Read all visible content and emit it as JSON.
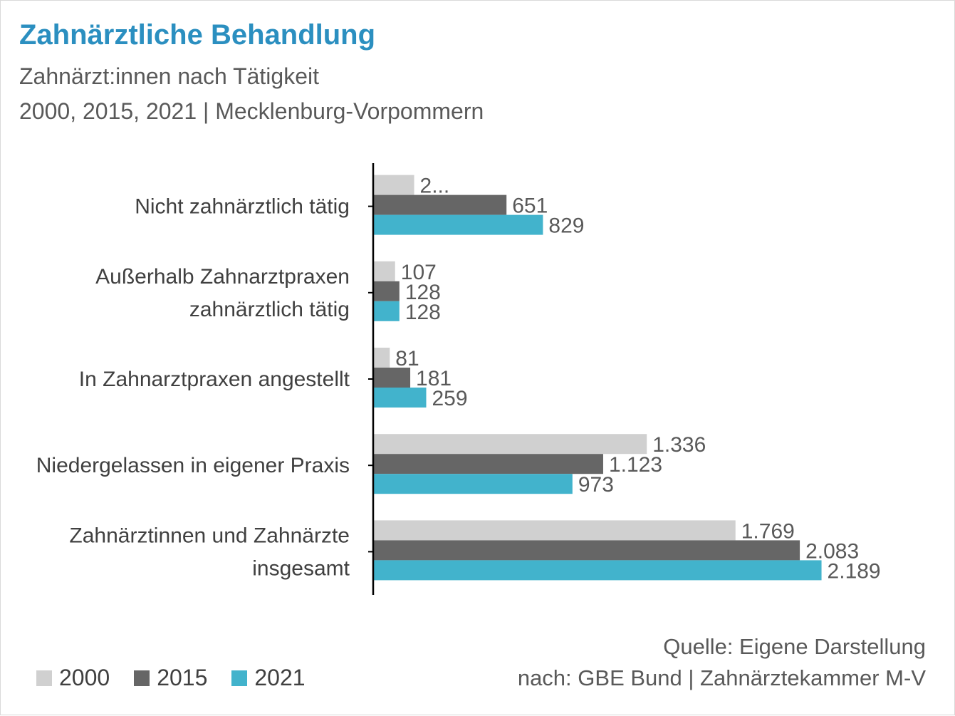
{
  "header": {
    "title": "Zahnärztliche Behandlung",
    "subtitle_line1": "Zahnärzt:innen nach Tätigkeit",
    "subtitle_line2": "2000, 2015, 2021 | Mecklenburg-Vorpommern"
  },
  "source": {
    "line1": "Quelle: Eigene Darstellung",
    "line2": "nach: GBE Bund | Zahnärztekammer M-V"
  },
  "chart_data": {
    "type": "bar",
    "orientation": "horizontal",
    "categories": [
      [
        "Nicht zahnärztlich tätig"
      ],
      [
        "Außerhalb Zahnarztpraxen",
        "zahnärztlich tätig"
      ],
      [
        "In Zahnarztpraxen angestellt"
      ],
      [
        "Niedergelassen in eigener Praxis"
      ],
      [
        "Zahnärztinnen und Zahnärzte",
        "insgesamt"
      ]
    ],
    "series": [
      {
        "name": "2000",
        "color": "#d0d0d0",
        "values": [
          200,
          107,
          81,
          1336,
          1769
        ],
        "labels": [
          "2...",
          "107",
          "81",
          "1.336",
          "1.769"
        ]
      },
      {
        "name": "2015",
        "color": "#666666",
        "values": [
          651,
          128,
          181,
          1123,
          2083
        ],
        "labels": [
          "651",
          "128",
          "181",
          "1.123",
          "2.083"
        ]
      },
      {
        "name": "2021",
        "color": "#42b3cc",
        "values": [
          829,
          128,
          259,
          973,
          2189
        ],
        "labels": [
          "829",
          "128",
          "259",
          "973",
          "2.189"
        ]
      }
    ],
    "legend_position": "bottom-left",
    "grid": false
  }
}
